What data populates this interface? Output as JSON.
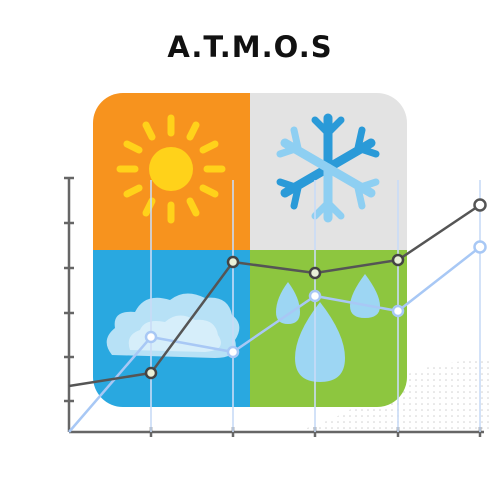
{
  "logo": {
    "title": "A.T.M.O.S"
  },
  "colors": {
    "sun_tile": "#f7931e",
    "snow_tile": "#e3e3e3",
    "cloud_tile": "#29a8e0",
    "rain_tile": "#8dc63f",
    "sun": "#ffd21a",
    "snow": "#3aa6e0",
    "dark_line": "#555555",
    "light_line": "#a8c8f5"
  },
  "icons": [
    "sun-icon",
    "snowflake-icon",
    "cloud-icon",
    "raindrop-icon"
  ]
}
